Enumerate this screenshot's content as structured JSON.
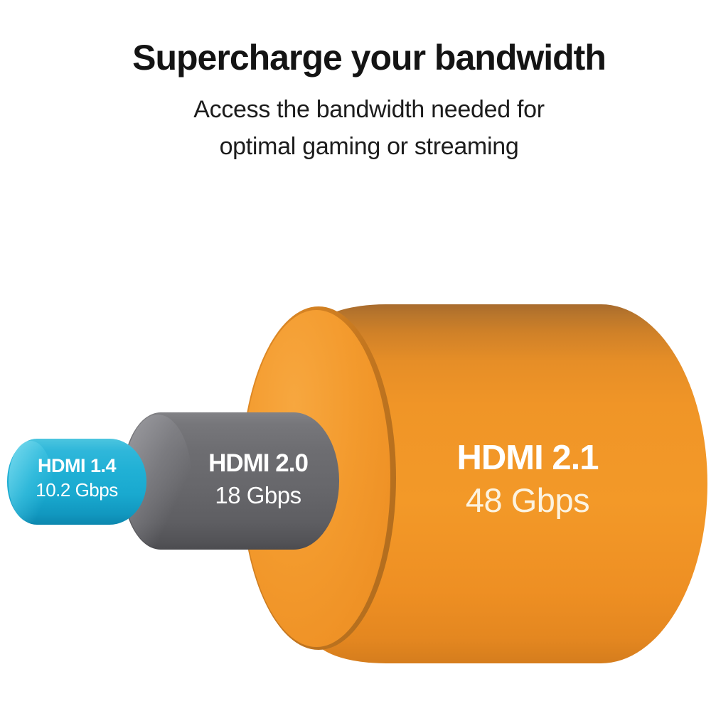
{
  "header": {
    "title": "Supercharge your bandwidth",
    "subtitle_line1": "Access the bandwidth needed for",
    "subtitle_line2": "optimal gaming or streaming"
  },
  "cylinders": [
    {
      "name": "HDMI 1.4",
      "value_label": "10.2 Gbps",
      "color": "#1fb0d5"
    },
    {
      "name": "HDMI 2.0",
      "value_label": "18 Gbps",
      "color": "#67676b"
    },
    {
      "name": "HDMI 2.1",
      "value_label": "48 Gbps",
      "color": "#ef9226"
    }
  ],
  "chart_data": {
    "type": "bar",
    "representation": "nested 3D cylinders sized proportionally to bandwidth",
    "title": "Supercharge your bandwidth",
    "subtitle": "Access the bandwidth needed for optimal gaming or streaming",
    "categories": [
      "HDMI 1.4",
      "HDMI 2.0",
      "HDMI 2.1"
    ],
    "values": [
      10.2,
      18,
      48
    ],
    "unit": "Gbps",
    "data_labels": [
      "10.2 Gbps",
      "18 Gbps",
      "48 Gbps"
    ],
    "colors": [
      "#1fb0d5",
      "#67676b",
      "#ef9226"
    ],
    "text_color_on_shapes": "#ffffff",
    "background": "#ffffff",
    "legend": "none",
    "axes": "none"
  }
}
